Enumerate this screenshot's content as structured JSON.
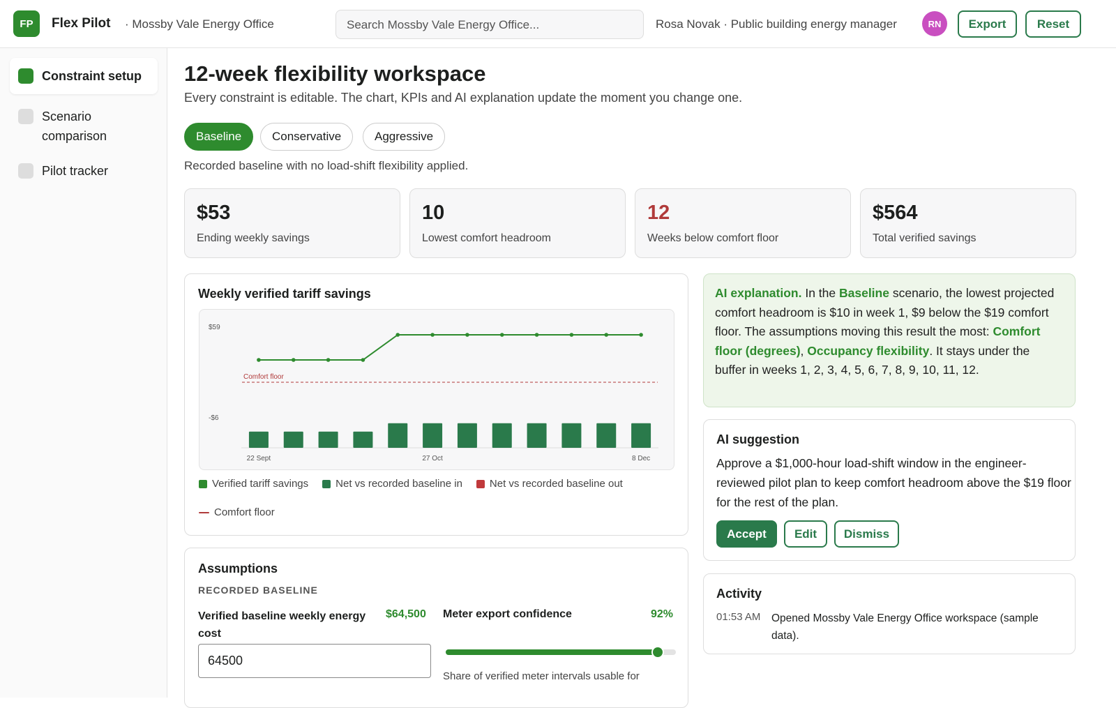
{
  "header": {
    "logo": "FP",
    "app": "Flex Pilot",
    "org": "· Mossby Vale Energy Office",
    "search": "Search Mossby Vale Energy Office...",
    "user": "Rosa Novak · Public building energy manager",
    "avatar": "RN",
    "buttons": [
      "Export",
      "Reset"
    ]
  },
  "nav": {
    "items": [
      "Constraint setup",
      "Scenario comparison",
      "Pilot tracker"
    ],
    "active": 0
  },
  "page": {
    "title": "12-week flexibility workspace",
    "subtitle": "Every constraint is editable. The chart, KPIs and AI explanation update the moment you change one.",
    "tabs": [
      "Baseline",
      "Conservative",
      "Aggressive"
    ],
    "active_tab": 0,
    "tab_description": "Recorded baseline with no load-shift flexibility applied."
  },
  "kpis": [
    {
      "value": "$53",
      "label": "Ending weekly savings"
    },
    {
      "value": "10",
      "label": "Lowest comfort headroom"
    },
    {
      "value": "12",
      "label": "Weeks below comfort floor",
      "alert": true
    },
    {
      "value": "$564",
      "label": "Total verified savings"
    }
  ],
  "chart_panel": {
    "title": "Weekly verified tariff savings"
  },
  "chart_data": {
    "type": "line",
    "categories": [
      "22 Sept",
      null,
      null,
      null,
      null,
      "27 Oct",
      null,
      null,
      null,
      null,
      null,
      "8 Dec"
    ],
    "series": [
      {
        "name": "Verified tariff savings",
        "color": "#2e8b2e",
        "values": [
          35,
          35,
          35,
          35,
          53,
          53,
          53,
          53,
          53,
          53,
          53,
          53
        ]
      },
      {
        "name": "Net vs recorded baseline in",
        "type": "bar",
        "axis": "y2",
        "color": "#2a7a4b",
        "values": [
          35,
          35,
          35,
          35,
          53,
          53,
          53,
          53,
          53,
          53,
          53,
          53
        ]
      },
      {
        "name": "Net vs recorded baseline out",
        "type": "bar",
        "axis": "y2",
        "color": "#c0393b",
        "values": [
          null,
          null,
          null,
          null,
          null,
          null,
          null,
          null,
          null,
          null,
          null,
          null
        ]
      }
    ],
    "comfort_floor": {
      "label": "Comfort floor",
      "value": 19,
      "color": "#b03a3a"
    },
    "ylim": [
      -28,
      65
    ],
    "yticks": [
      {
        "value": 59,
        "label": "$59"
      },
      {
        "value": -6,
        "label": "-$6"
      }
    ],
    "y2lim": [
      0,
      280
    ],
    "grid": false
  },
  "explanation": [
    {
      "text": "AI explanation.",
      "strong": true
    },
    {
      "text": " In the "
    },
    {
      "text": "Baseline",
      "strong": true
    },
    {
      "text": " scenario, the lowest projected comfort headroom is $10 in week 1, $9 below the $19 comfort floor. The assumptions moving this result the most: "
    },
    {
      "text": "Comfort floor (degrees)",
      "strong": true
    },
    {
      "text": ", "
    },
    {
      "text": "Occupancy flexibility",
      "strong": true
    },
    {
      "text": ". It stays under the buffer in weeks 1, 2, 3, 4, 5, 6, 7, 8, 9, 10, 11, 12."
    }
  ],
  "suggestion": {
    "title": "AI suggestion",
    "text": "Approve a $1,000-hour load-shift window in the engineer-reviewed pilot plan to keep comfort headroom above the $19 floor for the rest of the plan.",
    "buttons": [
      "Accept",
      "Edit",
      "Dismiss"
    ]
  },
  "activity": {
    "title": "Activity",
    "items": [
      {
        "time": "01:53 AM",
        "text": "Opened Mossby Vale Energy Office workspace (sample data)."
      }
    ]
  },
  "assumptions": {
    "title": "Assumptions",
    "section": "RECORDED BASELINE",
    "fields": [
      {
        "label": "Verified baseline weekly energy cost",
        "value": "$64,500",
        "input": "64500"
      },
      {
        "label": "Meter export confidence",
        "value": "92%",
        "slider": 92,
        "hint": "Share of verified meter intervals usable for"
      }
    ]
  }
}
